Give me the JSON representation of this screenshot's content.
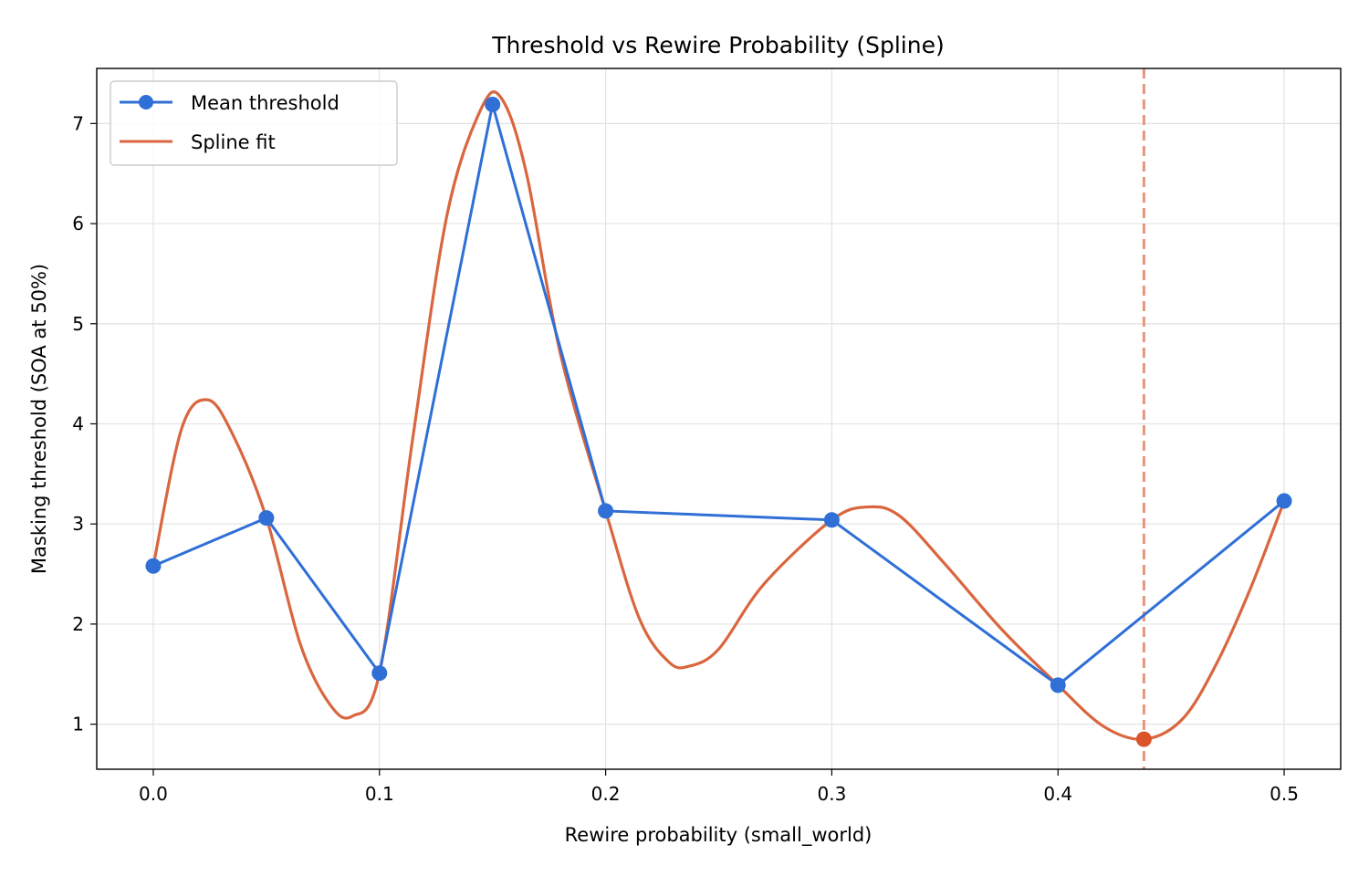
{
  "chart_data": {
    "type": "line",
    "title": "Threshold vs Rewire Probability (Spline)",
    "xlabel": "Rewire probability (small_world)",
    "ylabel": "Masking threshold (SOA at 50%)",
    "xlim": [
      -0.025,
      0.525
    ],
    "ylim": [
      0.55,
      7.55
    ],
    "xticks": [
      0.0,
      0.1,
      0.2,
      0.3,
      0.4,
      0.5
    ],
    "xtick_labels": [
      "0.0",
      "0.1",
      "0.2",
      "0.3",
      "0.4",
      "0.5"
    ],
    "yticks": [
      1,
      2,
      3,
      4,
      5,
      6,
      7
    ],
    "ytick_labels": [
      "1",
      "2",
      "3",
      "4",
      "5",
      "6",
      "7"
    ],
    "grid": true,
    "legend_position": "top-left",
    "series": [
      {
        "name": "Mean threshold",
        "kind": "line-markers",
        "color": "#2f6fd6",
        "x": [
          0.0,
          0.05,
          0.1,
          0.15,
          0.2,
          0.3,
          0.4,
          0.5
        ],
        "y": [
          2.58,
          3.06,
          1.51,
          7.19,
          3.13,
          3.04,
          1.39,
          3.23
        ]
      },
      {
        "name": "Spline fit",
        "kind": "line",
        "color": "#d9663f",
        "x": [
          0.0,
          0.0125,
          0.024,
          0.035,
          0.05,
          0.065,
          0.078,
          0.088,
          0.1,
          0.115,
          0.13,
          0.145,
          0.154,
          0.165,
          0.18,
          0.2,
          0.215,
          0.228,
          0.237,
          0.25,
          0.27,
          0.3,
          0.316,
          0.33,
          0.35,
          0.375,
          0.4,
          0.42,
          0.438,
          0.455,
          0.47,
          0.485,
          0.5
        ],
        "y": [
          2.58,
          3.95,
          4.24,
          3.9,
          3.06,
          1.8,
          1.2,
          1.08,
          1.51,
          3.9,
          6.1,
          7.15,
          7.25,
          6.5,
          4.7,
          3.13,
          2.05,
          1.62,
          1.58,
          1.75,
          2.4,
          3.04,
          3.17,
          3.08,
          2.6,
          1.95,
          1.39,
          0.98,
          0.85,
          1.05,
          1.6,
          2.35,
          3.23
        ]
      }
    ],
    "annotations": [
      {
        "kind": "vertical-dashed-line",
        "x": 0.438,
        "color": "#e8967a"
      },
      {
        "kind": "point",
        "x": 0.438,
        "y": 0.85,
        "color": "#d9532b"
      }
    ]
  }
}
